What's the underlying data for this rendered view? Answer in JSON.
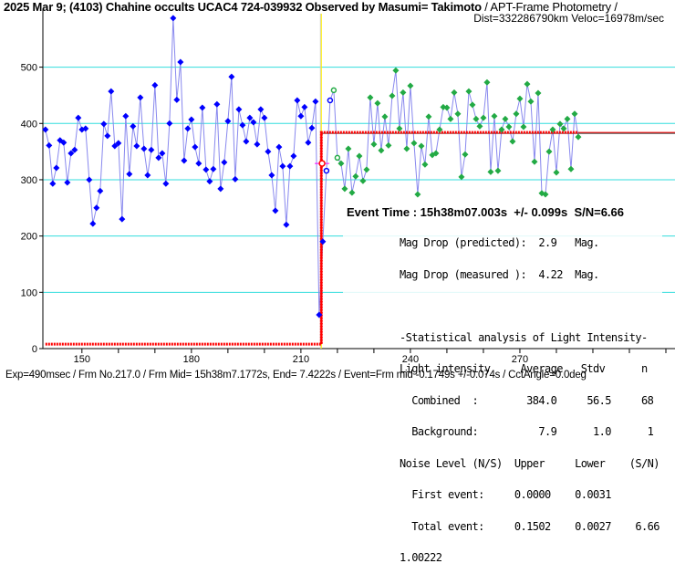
{
  "chart_data": {
    "type": "scatter",
    "title": "2025 Mar 9; (4103) Chahine occults UCAC4 724-039932 Observed by Masumi= Takimoto",
    "subtitle": "/ APT-Frame Photometry /",
    "subtitle2": "Dist=332286790km Veloc=16978m/sec",
    "xlim": [
      139.3,
      310
    ],
    "ylim": [
      0,
      595
    ],
    "x_ticks": [
      150,
      180,
      210,
      240,
      270
    ],
    "x_tick_labels": [
      "150",
      "180",
      "210",
      "240",
      "270"
    ],
    "y_ticks": [
      0,
      100,
      200,
      300,
      400,
      500
    ],
    "y_tick_labels": [
      "0",
      "100",
      "200",
      "300",
      "400",
      "500"
    ],
    "grid": true,
    "series": [
      {
        "name": "before",
        "color": "#0000ff",
        "start_frame": 140,
        "values": [
          389,
          361,
          293,
          321,
          370,
          366,
          295,
          347,
          353,
          410,
          389,
          391,
          300,
          222,
          250,
          280,
          399,
          378,
          457,
          360,
          365,
          230,
          413,
          310,
          395,
          360,
          446,
          355,
          308,
          353,
          468,
          339,
          347,
          293,
          400,
          587,
          442,
          509,
          334,
          391,
          407,
          358,
          329,
          428,
          318,
          297,
          319,
          434,
          284,
          331,
          404,
          483,
          301,
          425,
          397,
          368,
          410,
          402,
          363,
          425,
          410,
          350,
          308,
          245,
          358,
          324,
          220,
          324,
          342,
          441,
          413,
          429,
          366,
          392,
          439,
          60,
          190
        ]
      },
      {
        "name": "transition-blue",
        "color": "#0000ff",
        "hollow": true,
        "start_frame": 217,
        "values": [
          316,
          441
        ]
      },
      {
        "name": "transition-green",
        "color": "#22aa44",
        "hollow": true,
        "start_frame": 219,
        "values": [
          459,
          339
        ]
      },
      {
        "name": "after",
        "color": "#22aa44",
        "start_frame": 221,
        "values": [
          329,
          284,
          355,
          277,
          306,
          342,
          298,
          318,
          446,
          363,
          436,
          352,
          412,
          361,
          449,
          494,
          391,
          455,
          355,
          467,
          365,
          274,
          360,
          327,
          412,
          344,
          347,
          389,
          429,
          428,
          408,
          455,
          417,
          305,
          345,
          457,
          433,
          408,
          395,
          410,
          473,
          314,
          413,
          316,
          389,
          408,
          394,
          368,
          417,
          444,
          394,
          470,
          439,
          332,
          454,
          276,
          274,
          350,
          389,
          313,
          399,
          391,
          408,
          319,
          417,
          376
        ]
      }
    ],
    "model": {
      "bottom": 7.9,
      "top": 384.0,
      "drop_frame": 215.6,
      "start_frame": 140,
      "end_frame": 286
    },
    "event_marker": {
      "frame": 215.8,
      "value": 329
    },
    "colors": {
      "line": "#8888ee",
      "grid": "#33dddd",
      "model": "#ff0000",
      "event_line": "#ffee00"
    }
  },
  "event": {
    "text": "Event Time : 15h38m07.003s  +/- 0.099s  S/N=6.66"
  },
  "stats": {
    "lines": [
      "Mag Drop (predicted):  2.9   Mag.",
      "Mag Drop (measured ):  4.22  Mag.",
      "",
      "-Statistical analysis of Light Intensity-",
      "Light intensity     Average   Stdv      n",
      "  Combined  :        384.0     56.5     68",
      "  Background:          7.9      1.0      1",
      "Noise Level (N/S)  Upper     Lower    (S/N)",
      "  First event:     0.0000    0.0031",
      "  Total event:     0.1502    0.0027    6.66",
      "1.00222"
    ]
  },
  "footer": "Exp=490msec / Frm No.217.0 / Frm Mid= 15h38m7.1772s,  End= 7.4222s / Event=Frm mid -0.1749s +/-0.074s / CctAngle=0.0deg"
}
